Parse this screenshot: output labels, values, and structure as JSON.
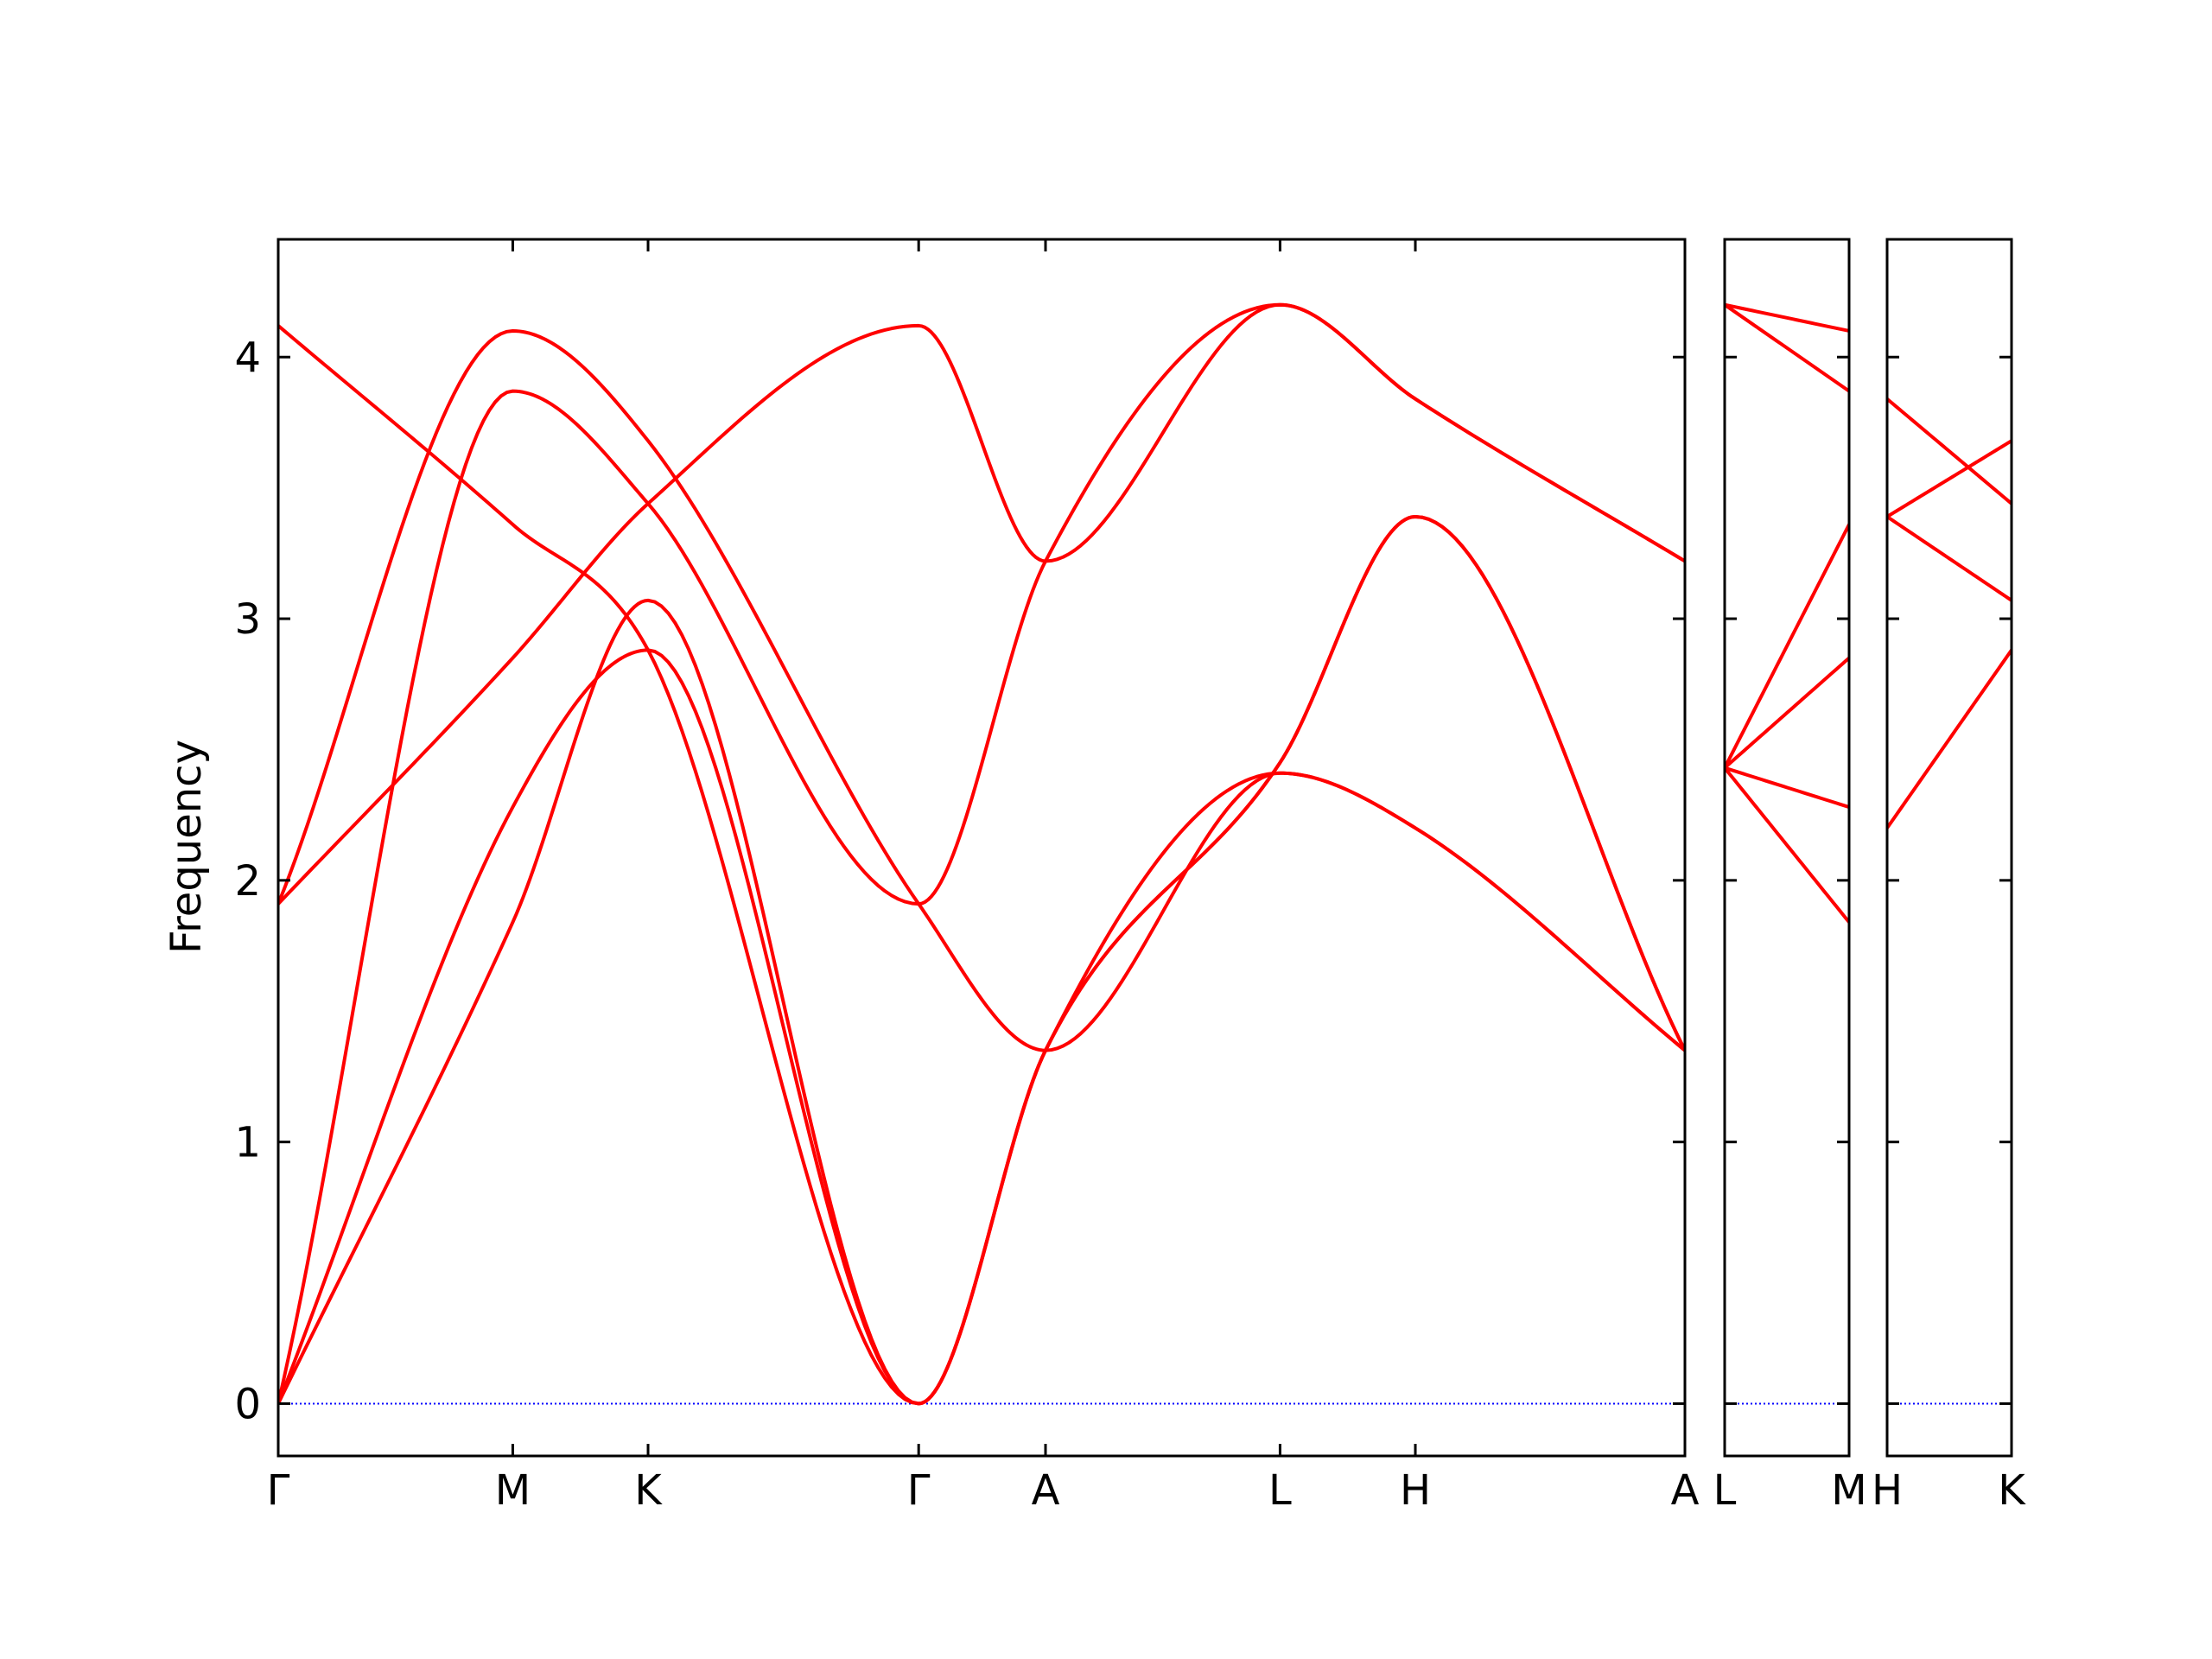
{
  "chart_data": {
    "type": "line",
    "ylabel": "Frequency",
    "ylim": [
      -0.2,
      4.45
    ],
    "yticks": [
      0,
      1,
      2,
      3,
      4
    ],
    "grid": false,
    "line_color": "#ff0000",
    "zero_line_color": "#0000ff",
    "panels": [
      {
        "id": "main",
        "xlim": [
          0,
          5.5
        ],
        "xticks": [
          {
            "x": 0.0,
            "label": "Γ"
          },
          {
            "x": 0.917,
            "label": "M"
          },
          {
            "x": 1.446,
            "label": "K"
          },
          {
            "x": 2.504,
            "label": "Γ"
          },
          {
            "x": 3.0,
            "label": "A"
          },
          {
            "x": 3.917,
            "label": "L"
          },
          {
            "x": 4.446,
            "label": "H"
          },
          {
            "x": 5.5,
            "label": "A"
          }
        ],
        "series": [
          {
            "points": [
              [
                0,
                0
              ],
              [
                0.917,
                1.84
              ],
              [
                1.446,
                3.07
              ],
              [
                2.504,
                0
              ],
              [
                3.0,
                1.35
              ],
              [
                3.917,
                2.41
              ],
              [
                4.446,
                2.2
              ],
              [
                5.5,
                1.35
              ]
            ]
          },
          {
            "points": [
              [
                0,
                0
              ],
              [
                0.917,
                2.28
              ],
              [
                1.446,
                2.88
              ],
              [
                2.504,
                0
              ],
              [
                3.0,
                1.35
              ],
              [
                3.917,
                2.45
              ],
              [
                4.446,
                3.39
              ],
              [
                5.5,
                1.35
              ]
            ]
          },
          {
            "points": [
              [
                0,
                0
              ],
              [
                0.917,
                3.87
              ],
              [
                1.446,
                3.44
              ],
              [
                2.504,
                1.91
              ],
              [
                3.0,
                3.22
              ],
              [
                3.917,
                4.2
              ],
              [
                4.446,
                3.84
              ],
              [
                5.5,
                3.22
              ]
            ]
          },
          {
            "points": [
              [
                0,
                1.91
              ],
              [
                0.917,
                2.85
              ],
              [
                1.446,
                3.44
              ],
              [
                2.504,
                4.12
              ],
              [
                3.0,
                3.22
              ],
              [
                3.917,
                4.2
              ],
              [
                4.446,
                3.84
              ],
              [
                5.5,
                3.22
              ]
            ]
          },
          {
            "points": [
              [
                0,
                1.91
              ],
              [
                0.917,
                4.1
              ],
              [
                1.446,
                3.68
              ],
              [
                2.504,
                1.91
              ],
              [
                3.0,
                1.35
              ],
              [
                3.917,
                2.41
              ],
              [
                4.446,
                2.2
              ],
              [
                5.5,
                1.35
              ]
            ]
          },
          {
            "points": [
              [
                0,
                4.12
              ],
              [
                0.917,
                3.36
              ],
              [
                1.446,
                2.88
              ],
              [
                2.504,
                0
              ],
              [
                3.0,
                1.35
              ],
              [
                3.917,
                2.45
              ],
              [
                4.446,
                3.39
              ],
              [
                5.5,
                1.35
              ]
            ]
          }
        ]
      },
      {
        "id": "L-M",
        "xlim": [
          0,
          0.5
        ],
        "xticks": [
          {
            "x": 0.0,
            "label": "L"
          },
          {
            "x": 0.5,
            "label": "M"
          }
        ],
        "series": [
          {
            "points": [
              [
                0,
                4.2
              ],
              [
                0.5,
                4.1
              ]
            ]
          },
          {
            "points": [
              [
                0,
                4.2
              ],
              [
                0.5,
                3.87
              ]
            ]
          },
          {
            "points": [
              [
                0,
                2.43
              ],
              [
                0.5,
                3.36
              ]
            ]
          },
          {
            "points": [
              [
                0,
                2.43
              ],
              [
                0.5,
                2.85
              ]
            ]
          },
          {
            "points": [
              [
                0,
                2.43
              ],
              [
                0.5,
                2.28
              ]
            ]
          },
          {
            "points": [
              [
                0,
                2.43
              ],
              [
                0.5,
                1.84
              ]
            ]
          }
        ]
      },
      {
        "id": "H-K",
        "xlim": [
          0,
          0.5
        ],
        "xticks": [
          {
            "x": 0.0,
            "label": "H"
          },
          {
            "x": 0.5,
            "label": "K"
          }
        ],
        "series": [
          {
            "points": [
              [
                0,
                3.84
              ],
              [
                0.5,
                3.44
              ]
            ]
          },
          {
            "points": [
              [
                0,
                3.39
              ],
              [
                0.5,
                3.68
              ]
            ]
          },
          {
            "points": [
              [
                0,
                3.39
              ],
              [
                0.5,
                3.07
              ]
            ]
          },
          {
            "points": [
              [
                0,
                2.2
              ],
              [
                0.5,
                2.88
              ]
            ]
          }
        ]
      }
    ]
  }
}
